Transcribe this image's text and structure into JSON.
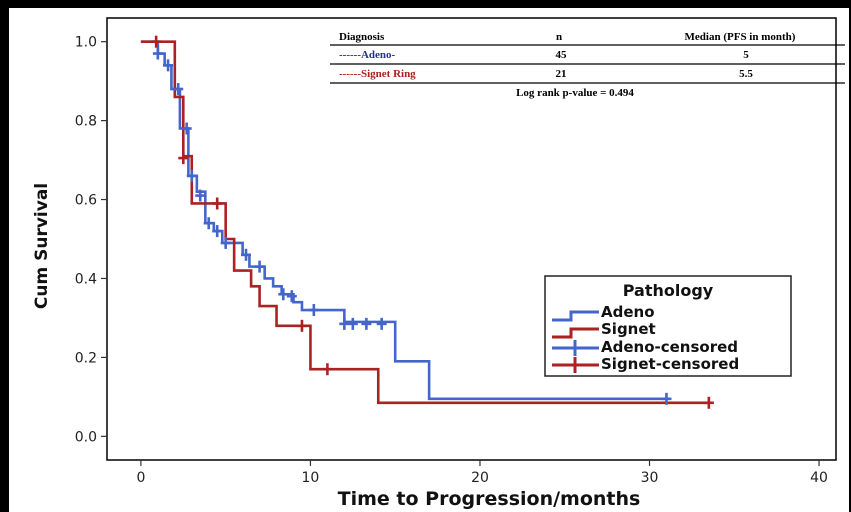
{
  "colors": {
    "adeno": "#4466cc",
    "signet": "#aa2222",
    "axis": "#333333",
    "frame": "#000000"
  },
  "table": {
    "headers": [
      "Diagnosis",
      "n",
      "Median (PFS in month)"
    ],
    "rows": [
      {
        "diagnosis": "------Adeno-",
        "n": "45",
        "median": "5",
        "color": "#223388"
      },
      {
        "diagnosis": "------Signet Ring",
        "n": "21",
        "median": "5.5",
        "color": "#aa2222"
      }
    ],
    "footnote": "Log rank p-value = 0.494"
  },
  "legend": {
    "title": "Pathology",
    "items": [
      {
        "label": "Adeno",
        "color": "#4466cc",
        "kind": "line"
      },
      {
        "label": "Signet",
        "color": "#aa2222",
        "kind": "line"
      },
      {
        "label": "Adeno-censored",
        "color": "#4466cc",
        "kind": "censor"
      },
      {
        "label": "Signet-censored",
        "color": "#aa2222",
        "kind": "censor"
      }
    ]
  },
  "chart_data": {
    "type": "line",
    "xlabel": "Time to Progression/months",
    "ylabel": "Cum Survival",
    "xlim": [
      -2,
      41
    ],
    "ylim": [
      -0.06,
      1.06
    ],
    "xticks": [
      "0",
      "10",
      "20",
      "30",
      "40"
    ],
    "yticks": [
      "0.0",
      "0.2",
      "0.4",
      "0.6",
      "0.8",
      "1.0"
    ],
    "legend_position": "lower-right",
    "series": [
      {
        "name": "Adeno",
        "color": "#4466cc",
        "steps": [
          [
            0,
            1.0
          ],
          [
            1.0,
            0.97
          ],
          [
            1.4,
            0.94
          ],
          [
            1.8,
            0.88
          ],
          [
            2.3,
            0.78
          ],
          [
            2.8,
            0.66
          ],
          [
            3.3,
            0.62
          ],
          [
            3.8,
            0.54
          ],
          [
            4.3,
            0.52
          ],
          [
            4.8,
            0.49
          ],
          [
            5.5,
            0.49
          ],
          [
            6.0,
            0.46
          ],
          [
            6.4,
            0.43
          ],
          [
            7.3,
            0.4
          ],
          [
            7.8,
            0.38
          ],
          [
            8.3,
            0.36
          ],
          [
            9.0,
            0.34
          ],
          [
            9.5,
            0.32
          ],
          [
            12.0,
            0.29
          ],
          [
            15.0,
            0.19
          ],
          [
            17.0,
            0.095
          ],
          [
            31.0,
            0.095
          ]
        ],
        "censored": [
          [
            1.0,
            0.97
          ],
          [
            1.6,
            0.94
          ],
          [
            2.2,
            0.88
          ],
          [
            2.7,
            0.78
          ],
          [
            3.0,
            0.66
          ],
          [
            3.5,
            0.61
          ],
          [
            4.0,
            0.54
          ],
          [
            4.5,
            0.52
          ],
          [
            5.0,
            0.49
          ],
          [
            6.2,
            0.46
          ],
          [
            7.0,
            0.43
          ],
          [
            8.4,
            0.36
          ],
          [
            8.9,
            0.355
          ],
          [
            10.2,
            0.32
          ],
          [
            12.0,
            0.285
          ],
          [
            12.5,
            0.285
          ],
          [
            13.3,
            0.285
          ],
          [
            14.2,
            0.285
          ],
          [
            31.0,
            0.095
          ]
        ]
      },
      {
        "name": "Signet",
        "color": "#aa2222",
        "steps": [
          [
            0,
            1.0
          ],
          [
            2.0,
            0.86
          ],
          [
            2.5,
            0.71
          ],
          [
            3.0,
            0.59
          ],
          [
            5.0,
            0.5
          ],
          [
            5.5,
            0.42
          ],
          [
            6.5,
            0.38
          ],
          [
            7.0,
            0.33
          ],
          [
            8.0,
            0.28
          ],
          [
            10.0,
            0.17
          ],
          [
            14.0,
            0.085
          ],
          [
            33.5,
            0.085
          ]
        ],
        "censored": [
          [
            0.9,
            1.0
          ],
          [
            2.5,
            0.705
          ],
          [
            4.5,
            0.59
          ],
          [
            9.5,
            0.28
          ],
          [
            11.0,
            0.17
          ],
          [
            33.5,
            0.085
          ]
        ]
      }
    ]
  }
}
